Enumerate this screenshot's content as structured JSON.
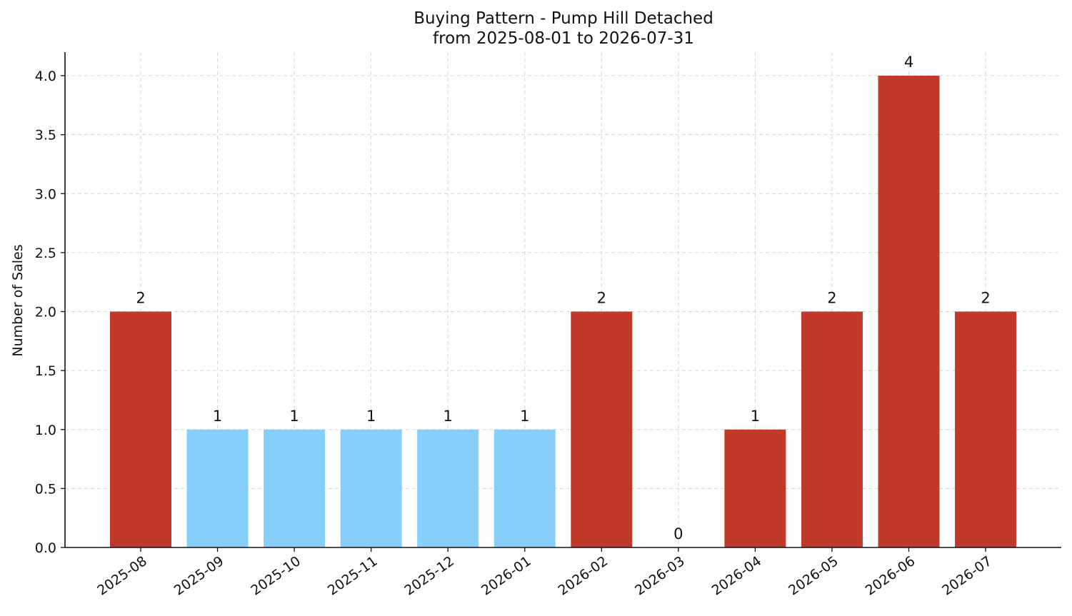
{
  "chart_data": {
    "type": "bar",
    "title": "Buying Pattern - Pump Hill Detached",
    "subtitle": "from 2025-08-01 to 2026-07-31",
    "xlabel": "",
    "ylabel": "Number of Sales",
    "ylim": [
      0,
      4.2
    ],
    "yticks": [
      "0.0",
      "0.5",
      "1.0",
      "1.5",
      "2.0",
      "2.5",
      "3.0",
      "3.5",
      "4.0"
    ],
    "grid": true,
    "categories": [
      "2025-08",
      "2025-09",
      "2025-10",
      "2025-11",
      "2025-12",
      "2026-01",
      "2026-02",
      "2026-03",
      "2026-04",
      "2026-05",
      "2026-06",
      "2026-07"
    ],
    "values": [
      2,
      1,
      1,
      1,
      1,
      1,
      2,
      0,
      1,
      2,
      4,
      2
    ],
    "colors": {
      "high": "#c0392b",
      "low": "#87cefa"
    },
    "bar_colors": [
      "high",
      "low",
      "low",
      "low",
      "low",
      "low",
      "high",
      "low",
      "high",
      "high",
      "high",
      "high"
    ]
  }
}
